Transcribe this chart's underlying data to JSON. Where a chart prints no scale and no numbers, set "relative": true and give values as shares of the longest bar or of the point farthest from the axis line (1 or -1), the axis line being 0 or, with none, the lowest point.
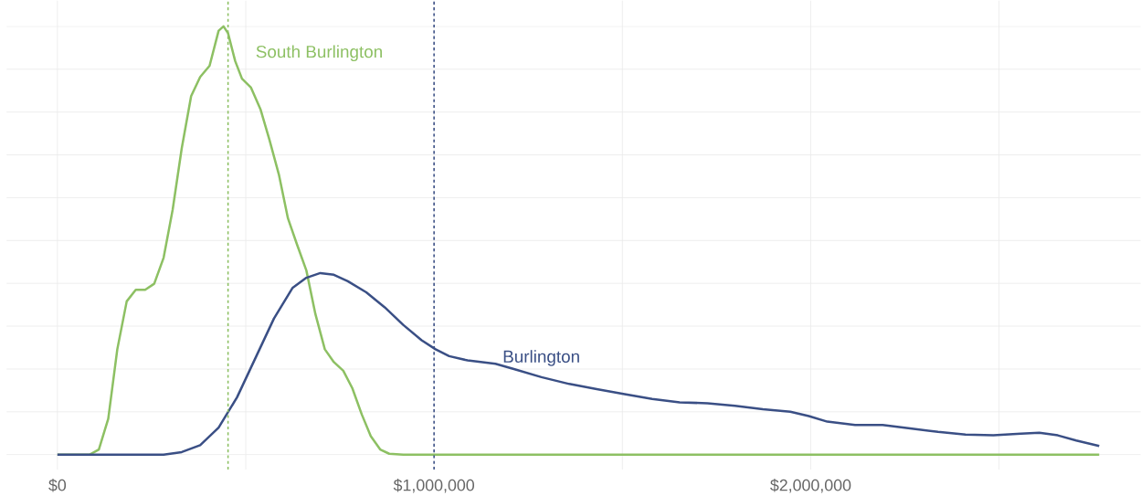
{
  "chart_data": {
    "type": "line",
    "relative": true,
    "legend": false,
    "grid": true,
    "marker": "none",
    "line_style": "solid",
    "xlim": [
      -135000,
      2876000
    ],
    "xticks": [
      {
        "value": 0,
        "label": "$0"
      },
      {
        "value": 500000,
        "label": null
      },
      {
        "value": 1000000,
        "label": "$1,000,000"
      },
      {
        "value": 1500000,
        "label": null
      },
      {
        "value": 2000000,
        "label": "$2,000,000"
      },
      {
        "value": 2500000,
        "label": null
      }
    ],
    "series": [
      {
        "name": "South Burlington",
        "color": "#8dc063",
        "x": [
          0,
          86000,
          110000,
          135000,
          159000,
          184000,
          208000,
          233000,
          257000,
          282000,
          306000,
          330000,
          355000,
          379000,
          404000,
          428000,
          441000,
          453000,
          472000,
          490000,
          514000,
          539000,
          563000,
          588000,
          612000,
          636000,
          661000,
          685000,
          710000,
          734000,
          759000,
          783000,
          808000,
          832000,
          857000,
          881000,
          918000,
          2766000
        ],
        "values": [
          0,
          0,
          0.012,
          0.084,
          0.246,
          0.358,
          0.385,
          0.385,
          0.399,
          0.46,
          0.572,
          0.715,
          0.837,
          0.882,
          0.908,
          0.99,
          1,
          0.984,
          0.919,
          0.878,
          0.857,
          0.807,
          0.735,
          0.654,
          0.552,
          0.491,
          0.43,
          0.328,
          0.246,
          0.216,
          0.196,
          0.155,
          0.094,
          0.043,
          0.012,
          0.002,
          0,
          0
        ]
      },
      {
        "name": "Burlington",
        "color": "#3a4f85",
        "x": [
          0,
          282000,
          330000,
          379000,
          428000,
          477000,
          526000,
          575000,
          624000,
          661000,
          698000,
          734000,
          771000,
          820000,
          869000,
          918000,
          967000,
          1004000,
          1040000,
          1089000,
          1163000,
          1212000,
          1285000,
          1359000,
          1432000,
          1506000,
          1579000,
          1652000,
          1726000,
          1799000,
          1873000,
          1946000,
          1995000,
          2044000,
          2118000,
          2191000,
          2264000,
          2338000,
          2411000,
          2485000,
          2558000,
          2607000,
          2656000,
          2705000,
          2766000
        ],
        "values": [
          0,
          0,
          0.006,
          0.022,
          0.063,
          0.134,
          0.226,
          0.318,
          0.389,
          0.413,
          0.424,
          0.42,
          0.405,
          0.379,
          0.344,
          0.303,
          0.267,
          0.246,
          0.23,
          0.22,
          0.212,
          0.2,
          0.181,
          0.165,
          0.153,
          0.141,
          0.13,
          0.122,
          0.12,
          0.114,
          0.106,
          0.1,
          0.09,
          0.077,
          0.069,
          0.069,
          0.061,
          0.053,
          0.047,
          0.045,
          0.049,
          0.051,
          0.045,
          0.033,
          0.02
        ]
      }
    ],
    "ref_lines": [
      {
        "axis": "x",
        "value": 453000,
        "color": "#8dc063",
        "line_style": "dashed"
      },
      {
        "axis": "x",
        "value": 1000000,
        "color": "#3a4f85",
        "line_style": "dashed"
      }
    ]
  }
}
